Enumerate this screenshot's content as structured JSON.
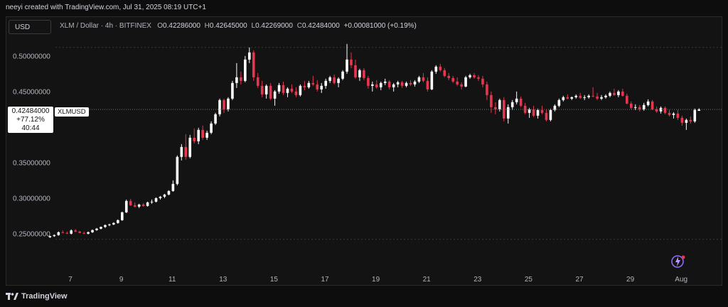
{
  "header": {
    "credit": "neeyi created with TradingView.com, Jul 31, 2025 08:19 UTC+1"
  },
  "toolbar": {
    "currency_button": "USD"
  },
  "legend": {
    "symbol": "XLM / Dollar · 4h · BITFINEX",
    "open_label": "O",
    "open": "0.42286000",
    "high_label": "H",
    "high": "0.42645000",
    "low_label": "L",
    "low": "0.42269000",
    "close_label": "C",
    "close": "0.42484000",
    "change": "+0.00081000 (+0.19%)"
  },
  "price_tag": {
    "price": "0.42484000",
    "change_pct": "+77.12%",
    "countdown": "40:44",
    "symbol": "XLMUSD"
  },
  "footer": {
    "brand": "TradingView"
  },
  "colors": {
    "background": "#131313",
    "up": "#ffffff",
    "down": "#e8364f",
    "grid_dashed": "#3b3b3b",
    "text": "#b2b5be"
  },
  "chart_data": {
    "type": "candlestick",
    "symbol": "XLMUSD",
    "interval": "4h",
    "exchange": "BITFINEX",
    "ylim": [
      0.24,
      0.52
    ],
    "y_ticks": [
      "0.50000000",
      "0.45000000",
      "0.35000000",
      "0.30000000",
      "0.25000000"
    ],
    "y_tick_values": [
      0.5,
      0.45,
      0.35,
      0.3,
      0.25
    ],
    "x_tick_labels": [
      "7",
      "9",
      "11",
      "13",
      "15",
      "17",
      "19",
      "21",
      "23",
      "25",
      "27",
      "29",
      "Aug"
    ],
    "x_tick_days": [
      7,
      9,
      11,
      13,
      15,
      17,
      19,
      21,
      23,
      25,
      27,
      29,
      31
    ],
    "first_candle_day": 6.2,
    "last_price": 0.42484,
    "candles": [
      [
        0.245,
        0.247,
        0.244,
        0.2465
      ],
      [
        0.2465,
        0.249,
        0.2455,
        0.248
      ],
      [
        0.248,
        0.253,
        0.247,
        0.252
      ],
      [
        0.252,
        0.2545,
        0.2505,
        0.251
      ],
      [
        0.251,
        0.253,
        0.2495,
        0.25
      ],
      [
        0.25,
        0.256,
        0.249,
        0.2545
      ],
      [
        0.2545,
        0.2565,
        0.252,
        0.253
      ],
      [
        0.253,
        0.254,
        0.2505,
        0.251
      ],
      [
        0.251,
        0.253,
        0.2495,
        0.25
      ],
      [
        0.25,
        0.253,
        0.249,
        0.252
      ],
      [
        0.252,
        0.256,
        0.251,
        0.255
      ],
      [
        0.255,
        0.258,
        0.254,
        0.257
      ],
      [
        0.257,
        0.26,
        0.256,
        0.2595
      ],
      [
        0.2595,
        0.263,
        0.258,
        0.262
      ],
      [
        0.262,
        0.264,
        0.2605,
        0.263
      ],
      [
        0.263,
        0.266,
        0.262,
        0.265
      ],
      [
        0.265,
        0.27,
        0.264,
        0.269
      ],
      [
        0.269,
        0.281,
        0.268,
        0.28
      ],
      [
        0.28,
        0.298,
        0.279,
        0.296
      ],
      [
        0.296,
        0.299,
        0.289,
        0.29
      ],
      [
        0.29,
        0.294,
        0.287,
        0.288
      ],
      [
        0.288,
        0.292,
        0.286,
        0.291
      ],
      [
        0.291,
        0.293,
        0.288,
        0.289
      ],
      [
        0.289,
        0.295,
        0.288,
        0.294
      ],
      [
        0.294,
        0.298,
        0.292,
        0.295
      ],
      [
        0.295,
        0.301,
        0.294,
        0.3
      ],
      [
        0.3,
        0.303,
        0.298,
        0.302
      ],
      [
        0.302,
        0.306,
        0.3,
        0.305
      ],
      [
        0.305,
        0.311,
        0.304,
        0.31
      ],
      [
        0.31,
        0.325,
        0.309,
        0.32
      ],
      [
        0.32,
        0.36,
        0.318,
        0.358
      ],
      [
        0.358,
        0.376,
        0.353,
        0.372
      ],
      [
        0.372,
        0.39,
        0.354,
        0.358
      ],
      [
        0.358,
        0.389,
        0.356,
        0.385
      ],
      [
        0.385,
        0.398,
        0.377,
        0.38
      ],
      [
        0.38,
        0.399,
        0.376,
        0.396
      ],
      [
        0.396,
        0.402,
        0.382,
        0.385
      ],
      [
        0.385,
        0.395,
        0.382,
        0.392
      ],
      [
        0.392,
        0.408,
        0.39,
        0.405
      ],
      [
        0.405,
        0.42,
        0.403,
        0.418
      ],
      [
        0.418,
        0.44,
        0.415,
        0.438
      ],
      [
        0.438,
        0.44,
        0.42,
        0.425
      ],
      [
        0.425,
        0.442,
        0.422,
        0.44
      ],
      [
        0.44,
        0.465,
        0.438,
        0.462
      ],
      [
        0.462,
        0.49,
        0.455,
        0.47
      ],
      [
        0.47,
        0.478,
        0.46,
        0.465
      ],
      [
        0.465,
        0.5,
        0.463,
        0.495
      ],
      [
        0.495,
        0.512,
        0.49,
        0.505
      ],
      [
        0.505,
        0.508,
        0.465,
        0.47
      ],
      [
        0.47,
        0.476,
        0.455,
        0.458
      ],
      [
        0.458,
        0.465,
        0.442,
        0.446
      ],
      [
        0.446,
        0.46,
        0.44,
        0.458
      ],
      [
        0.458,
        0.462,
        0.438,
        0.44
      ],
      [
        0.44,
        0.452,
        0.43,
        0.45
      ],
      [
        0.45,
        0.462,
        0.447,
        0.459
      ],
      [
        0.459,
        0.464,
        0.445,
        0.448
      ],
      [
        0.448,
        0.456,
        0.442,
        0.454
      ],
      [
        0.454,
        0.46,
        0.448,
        0.45
      ],
      [
        0.45,
        0.456,
        0.442,
        0.445
      ],
      [
        0.445,
        0.46,
        0.443,
        0.458
      ],
      [
        0.458,
        0.465,
        0.452,
        0.456
      ],
      [
        0.456,
        0.465,
        0.454,
        0.462
      ],
      [
        0.462,
        0.472,
        0.458,
        0.46
      ],
      [
        0.46,
        0.466,
        0.45,
        0.453
      ],
      [
        0.453,
        0.462,
        0.448,
        0.458
      ],
      [
        0.458,
        0.468,
        0.454,
        0.465
      ],
      [
        0.465,
        0.472,
        0.462,
        0.47
      ],
      [
        0.47,
        0.474,
        0.46,
        0.462
      ],
      [
        0.462,
        0.47,
        0.456,
        0.468
      ],
      [
        0.468,
        0.48,
        0.466,
        0.478
      ],
      [
        0.478,
        0.517,
        0.475,
        0.495
      ],
      [
        0.495,
        0.505,
        0.483,
        0.487
      ],
      [
        0.487,
        0.495,
        0.468,
        0.47
      ],
      [
        0.47,
        0.482,
        0.465,
        0.48
      ],
      [
        0.48,
        0.483,
        0.466,
        0.469
      ],
      [
        0.469,
        0.472,
        0.454,
        0.458
      ],
      [
        0.458,
        0.464,
        0.45,
        0.46
      ],
      [
        0.46,
        0.466,
        0.454,
        0.456
      ],
      [
        0.456,
        0.464,
        0.452,
        0.462
      ],
      [
        0.462,
        0.468,
        0.459,
        0.464
      ],
      [
        0.464,
        0.466,
        0.453,
        0.456
      ],
      [
        0.456,
        0.462,
        0.45,
        0.46
      ],
      [
        0.46,
        0.465,
        0.456,
        0.463
      ],
      [
        0.463,
        0.465,
        0.455,
        0.458
      ],
      [
        0.458,
        0.464,
        0.456,
        0.462
      ],
      [
        0.462,
        0.466,
        0.458,
        0.46
      ],
      [
        0.46,
        0.466,
        0.457,
        0.464
      ],
      [
        0.464,
        0.472,
        0.462,
        0.47
      ],
      [
        0.47,
        0.476,
        0.463,
        0.465
      ],
      [
        0.465,
        0.47,
        0.45,
        0.453
      ],
      [
        0.453,
        0.48,
        0.452,
        0.478
      ],
      [
        0.478,
        0.487,
        0.475,
        0.485
      ],
      [
        0.485,
        0.489,
        0.478,
        0.48
      ],
      [
        0.48,
        0.483,
        0.47,
        0.472
      ],
      [
        0.472,
        0.476,
        0.466,
        0.469
      ],
      [
        0.469,
        0.472,
        0.462,
        0.464
      ],
      [
        0.464,
        0.47,
        0.458,
        0.46
      ],
      [
        0.46,
        0.463,
        0.453,
        0.457
      ],
      [
        0.457,
        0.472,
        0.456,
        0.47
      ],
      [
        0.47,
        0.475,
        0.468,
        0.473
      ],
      [
        0.473,
        0.476,
        0.468,
        0.47
      ],
      [
        0.47,
        0.473,
        0.465,
        0.468
      ],
      [
        0.468,
        0.472,
        0.456,
        0.46
      ],
      [
        0.46,
        0.464,
        0.438,
        0.445
      ],
      [
        0.445,
        0.45,
        0.42,
        0.428
      ],
      [
        0.428,
        0.435,
        0.418,
        0.425
      ],
      [
        0.425,
        0.44,
        0.422,
        0.438
      ],
      [
        0.438,
        0.442,
        0.408,
        0.412
      ],
      [
        0.412,
        0.432,
        0.405,
        0.428
      ],
      [
        0.428,
        0.438,
        0.424,
        0.435
      ],
      [
        0.435,
        0.45,
        0.432,
        0.44
      ],
      [
        0.44,
        0.443,
        0.428,
        0.43
      ],
      [
        0.43,
        0.434,
        0.418,
        0.42
      ],
      [
        0.42,
        0.427,
        0.413,
        0.425
      ],
      [
        0.425,
        0.43,
        0.414,
        0.416
      ],
      [
        0.416,
        0.426,
        0.412,
        0.424
      ],
      [
        0.424,
        0.43,
        0.418,
        0.42
      ],
      [
        0.42,
        0.425,
        0.408,
        0.41
      ],
      [
        0.41,
        0.426,
        0.408,
        0.424
      ],
      [
        0.424,
        0.432,
        0.422,
        0.43
      ],
      [
        0.43,
        0.44,
        0.428,
        0.438
      ],
      [
        0.438,
        0.444,
        0.436,
        0.442
      ],
      [
        0.442,
        0.446,
        0.439,
        0.44
      ],
      [
        0.44,
        0.443,
        0.438,
        0.442
      ],
      [
        0.442,
        0.446,
        0.44,
        0.444
      ],
      [
        0.444,
        0.448,
        0.44,
        0.441
      ],
      [
        0.441,
        0.445,
        0.438,
        0.442
      ],
      [
        0.442,
        0.446,
        0.44,
        0.444
      ],
      [
        0.444,
        0.456,
        0.442,
        0.443
      ],
      [
        0.443,
        0.448,
        0.438,
        0.44
      ],
      [
        0.44,
        0.445,
        0.438,
        0.442
      ],
      [
        0.442,
        0.446,
        0.44,
        0.444
      ],
      [
        0.444,
        0.45,
        0.442,
        0.448
      ],
      [
        0.448,
        0.454,
        0.444,
        0.445
      ],
      [
        0.445,
        0.452,
        0.442,
        0.45
      ],
      [
        0.45,
        0.454,
        0.443,
        0.444
      ],
      [
        0.444,
        0.447,
        0.432,
        0.433
      ],
      [
        0.433,
        0.436,
        0.425,
        0.427
      ],
      [
        0.427,
        0.432,
        0.424,
        0.428
      ],
      [
        0.428,
        0.431,
        0.422,
        0.425
      ],
      [
        0.425,
        0.434,
        0.423,
        0.431
      ],
      [
        0.431,
        0.439,
        0.429,
        0.436
      ],
      [
        0.436,
        0.438,
        0.424,
        0.425
      ],
      [
        0.425,
        0.429,
        0.42,
        0.422
      ],
      [
        0.422,
        0.429,
        0.419,
        0.427
      ],
      [
        0.427,
        0.429,
        0.418,
        0.42
      ],
      [
        0.42,
        0.424,
        0.415,
        0.417
      ],
      [
        0.417,
        0.421,
        0.412,
        0.419
      ],
      [
        0.419,
        0.424,
        0.41,
        0.413
      ],
      [
        0.413,
        0.416,
        0.402,
        0.406
      ],
      [
        0.406,
        0.412,
        0.396,
        0.41
      ],
      [
        0.41,
        0.415,
        0.405,
        0.408
      ],
      [
        0.408,
        0.426,
        0.406,
        0.424
      ],
      [
        0.4229,
        0.4265,
        0.4227,
        0.4248
      ]
    ]
  }
}
